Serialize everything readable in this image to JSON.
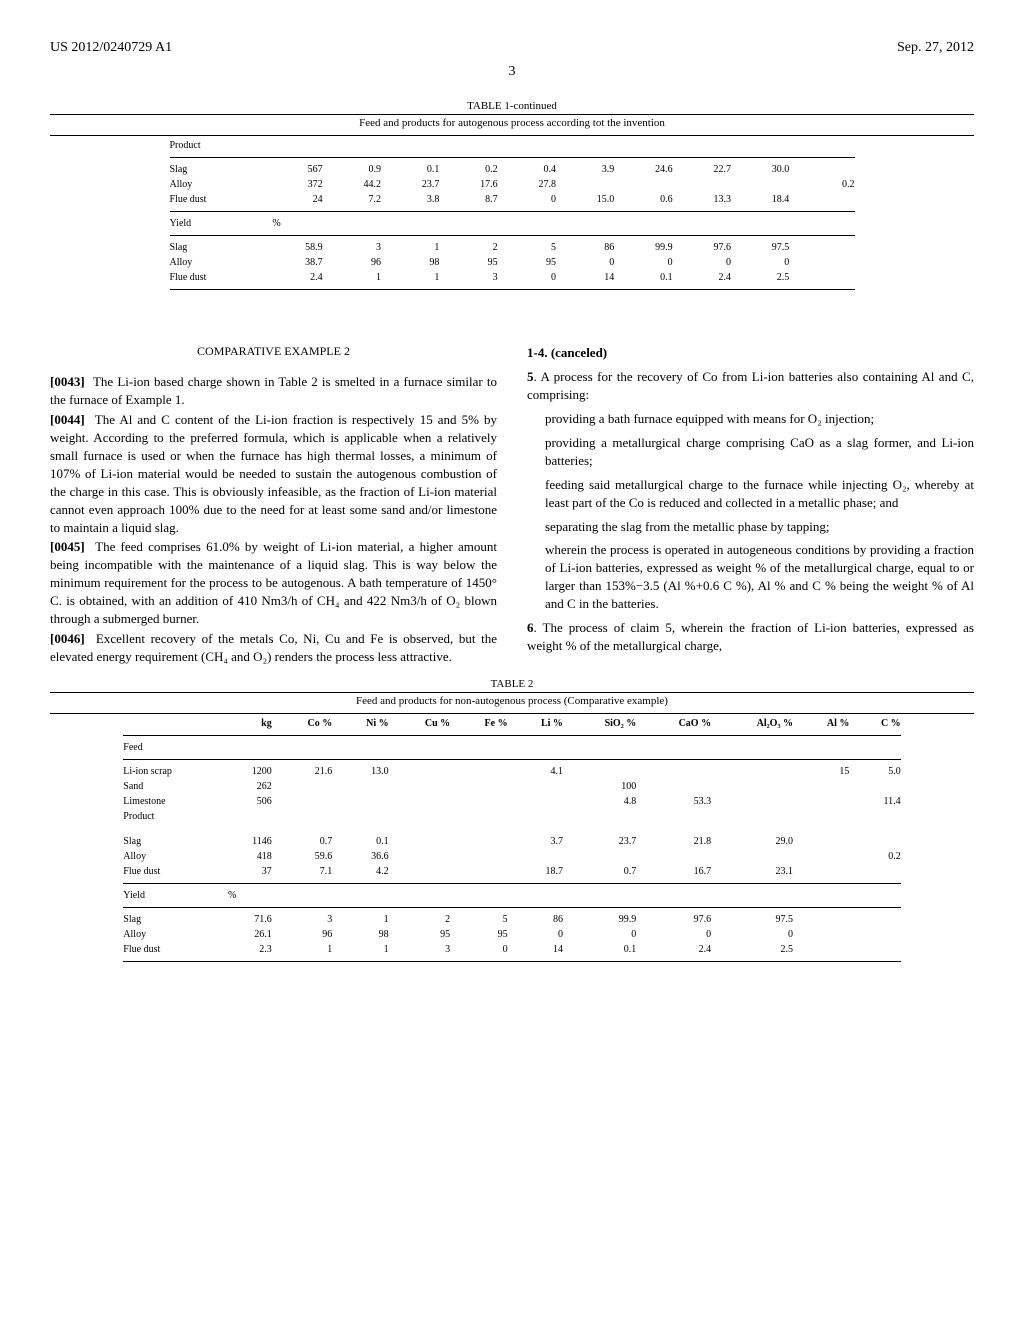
{
  "header": {
    "pub_number": "US 2012/0240729 A1",
    "pub_date": "Sep. 27, 2012"
  },
  "page_number": "3",
  "table1": {
    "title": "TABLE 1-continued",
    "subtitle": "Feed and products for autogenous process according tot the invention",
    "section_product": "Product",
    "section_yield": "Yield",
    "yield_unit": "%",
    "product_rows": [
      {
        "label": "Slag",
        "kg": "567",
        "Co": "0.9",
        "Ni": "0.1",
        "Cu": "0.2",
        "Fe": "0.4",
        "Li": "3.9",
        "SiO2": "24.6",
        "CaO": "22.7",
        "Al2O3": "30.0",
        "Al": "",
        "C": ""
      },
      {
        "label": "Alloy",
        "kg": "372",
        "Co": "44.2",
        "Ni": "23.7",
        "Cu": "17.6",
        "Fe": "27.8",
        "Li": "",
        "SiO2": "",
        "CaO": "",
        "Al2O3": "",
        "Al": "",
        "C": "0.2"
      },
      {
        "label": "Flue dust",
        "kg": "24",
        "Co": "7.2",
        "Ni": "3.8",
        "Cu": "8.7",
        "Fe": "0",
        "Li": "15.0",
        "SiO2": "0.6",
        "CaO": "13.3",
        "Al2O3": "18.4",
        "Al": "",
        "C": ""
      }
    ],
    "yield_rows": [
      {
        "label": "Slag",
        "kg": "58.9",
        "Co": "3",
        "Ni": "1",
        "Cu": "2",
        "Fe": "5",
        "Li": "86",
        "SiO2": "99.9",
        "CaO": "97.6",
        "Al2O3": "97.5",
        "Al": "",
        "C": ""
      },
      {
        "label": "Alloy",
        "kg": "38.7",
        "Co": "96",
        "Ni": "98",
        "Cu": "95",
        "Fe": "95",
        "Li": "0",
        "SiO2": "0",
        "CaO": "0",
        "Al2O3": "0",
        "Al": "",
        "C": ""
      },
      {
        "label": "Flue dust",
        "kg": "2.4",
        "Co": "1",
        "Ni": "1",
        "Cu": "3",
        "Fe": "0",
        "Li": "14",
        "SiO2": "0.1",
        "CaO": "2.4",
        "Al2O3": "2.5",
        "Al": "",
        "C": ""
      }
    ]
  },
  "comp_example": {
    "heading": "COMPARATIVE EXAMPLE 2",
    "paras": [
      {
        "num": "[0043]",
        "text": "The Li-ion based charge shown in Table 2 is smelted in a furnace similar to the furnace of Example 1."
      },
      {
        "num": "[0044]",
        "text": "The Al and C content of the Li-ion fraction is respectively 15 and 5% by weight. According to the preferred formula, which is applicable when a relatively small furnace is used or when the furnace has high thermal losses, a minimum of 107% of Li-ion material would be needed to sustain the autogenous combustion of the charge in this case. This is obviously infeasible, as the fraction of Li-ion material cannot even approach 100% due to the need for at least some sand and/or limestone to maintain a liquid slag."
      },
      {
        "num": "[0045]",
        "text": "The feed comprises 61.0% by weight of Li-ion material, a higher amount being incompatible with the maintenance of a liquid slag. This is way below the minimum requirement for the process to be autogenous. A bath temperature of 1450° C. is obtained, with an addition of 410 Nm3/h of CH₄ and 422 Nm3/h of O₂ blown through a submerged burner."
      },
      {
        "num": "[0046]",
        "text": "Excellent recovery of the metals Co, Ni, Cu and Fe is observed, but the elevated energy requirement (CH₄ and O₂) renders the process less attractive."
      }
    ]
  },
  "claims": {
    "canceled": "1-4. (canceled)",
    "claim5_lead": "5. A process for the recovery of Co from Li-ion batteries also containing Al and C, comprising:",
    "claim5_steps": [
      "providing a bath furnace equipped with means for O₂ injection;",
      "providing a metallurgical charge comprising CaO as a slag former, and Li-ion batteries;",
      "feeding said metallurgical charge to the furnace while injecting O₂, whereby at least part of the Co is reduced and collected in a metallic phase; and",
      "separating the slag from the metallic phase by tapping;",
      "wherein the process is operated in autogeneous conditions by providing a fraction of Li-ion batteries, expressed as weight % of the metallurgical charge, equal to or larger than 153%−3.5 (Al %+0.6 C %), Al % and C % being the weight % of Al and C in the batteries."
    ],
    "claim6": "6. The process of claim 5, wherein the fraction of Li-ion batteries, expressed as weight % of the metallurgical charge,"
  },
  "table2": {
    "title": "TABLE 2",
    "subtitle": "Feed and products for non-autogenous process (Comparative example)",
    "headers": [
      "",
      "kg",
      "Co %",
      "Ni %",
      "Cu %",
      "Fe %",
      "Li %",
      "SiO₂ %",
      "CaO %",
      "Al₂O₃ %",
      "Al %",
      "C %"
    ],
    "section_feed": "Feed",
    "section_product": "Product",
    "section_yield": "Yield",
    "yield_unit": "%",
    "feed_rows": [
      {
        "label": "Li-ion scrap",
        "kg": "1200",
        "Co": "21.6",
        "Ni": "13.0",
        "Cu": "",
        "Fe": "",
        "Li": "4.1",
        "SiO2": "",
        "CaO": "",
        "Al2O3": "",
        "Al": "15",
        "C": "5.0"
      },
      {
        "label": "Sand",
        "kg": "262",
        "Co": "",
        "Ni": "",
        "Cu": "",
        "Fe": "",
        "Li": "",
        "SiO2": "100",
        "CaO": "",
        "Al2O3": "",
        "Al": "",
        "C": ""
      },
      {
        "label": "Limestone",
        "kg": "506",
        "Co": "",
        "Ni": "",
        "Cu": "",
        "Fe": "",
        "Li": "",
        "SiO2": "4.8",
        "CaO": "53.3",
        "Al2O3": "",
        "Al": "",
        "C": "11.4"
      }
    ],
    "product_rows": [
      {
        "label": "Slag",
        "kg": "1146",
        "Co": "0.7",
        "Ni": "0.1",
        "Cu": "",
        "Fe": "",
        "Li": "3.7",
        "SiO2": "23.7",
        "CaO": "21.8",
        "Al2O3": "29.0",
        "Al": "",
        "C": ""
      },
      {
        "label": "Alloy",
        "kg": "418",
        "Co": "59.6",
        "Ni": "36.6",
        "Cu": "",
        "Fe": "",
        "Li": "",
        "SiO2": "",
        "CaO": "",
        "Al2O3": "",
        "Al": "",
        "C": "0.2"
      },
      {
        "label": "Flue dust",
        "kg": "37",
        "Co": "7.1",
        "Ni": "4.2",
        "Cu": "",
        "Fe": "",
        "Li": "18.7",
        "SiO2": "0.7",
        "CaO": "16.7",
        "Al2O3": "23.1",
        "Al": "",
        "C": ""
      }
    ],
    "yield_rows": [
      {
        "label": "Slag",
        "kg": "71.6",
        "Co": "3",
        "Ni": "1",
        "Cu": "2",
        "Fe": "5",
        "Li": "86",
        "SiO2": "99.9",
        "CaO": "97.6",
        "Al2O3": "97.5",
        "Al": "",
        "C": ""
      },
      {
        "label": "Alloy",
        "kg": "26.1",
        "Co": "96",
        "Ni": "98",
        "Cu": "95",
        "Fe": "95",
        "Li": "0",
        "SiO2": "0",
        "CaO": "0",
        "Al2O3": "0",
        "Al": "",
        "C": ""
      },
      {
        "label": "Flue dust",
        "kg": "2.3",
        "Co": "1",
        "Ni": "1",
        "Cu": "3",
        "Fe": "0",
        "Li": "14",
        "SiO2": "0.1",
        "CaO": "2.4",
        "Al2O3": "2.5",
        "Al": "",
        "C": ""
      }
    ]
  }
}
